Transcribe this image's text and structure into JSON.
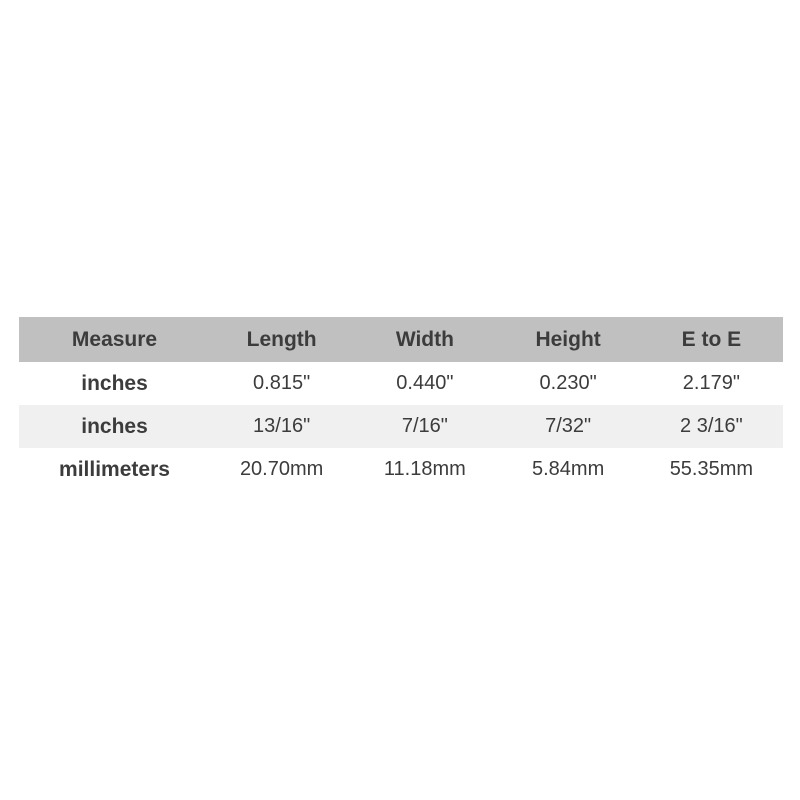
{
  "chart_data": {
    "type": "table",
    "title": "Measurement specifications table",
    "columns": [
      "Measure",
      "Length",
      "Width",
      "Height",
      "E to E"
    ],
    "rows": [
      {
        "cells": [
          "inches",
          "0.815\"",
          "0.440\"",
          "0.230\"",
          "2.179\""
        ]
      },
      {
        "cells": [
          "inches",
          "13/16\"",
          "7/16\"",
          "7/32\"",
          "2 3/16\""
        ]
      },
      {
        "cells": [
          "millimeters",
          "20.70mm",
          "11.18mm",
          "5.84mm",
          "55.35mm"
        ]
      }
    ],
    "layout": {
      "header_background": "#c0c0c0",
      "alt_row_background": "#f0f0f0",
      "row_background": "#ffffff",
      "text_color": "#3c3c3c",
      "grid": "none",
      "alignment": "center"
    }
  }
}
